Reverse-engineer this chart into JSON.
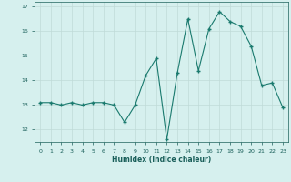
{
  "x": [
    0,
    1,
    2,
    3,
    4,
    5,
    6,
    7,
    8,
    9,
    10,
    11,
    12,
    13,
    14,
    15,
    16,
    17,
    18,
    19,
    20,
    21,
    22,
    23
  ],
  "y": [
    13.1,
    13.1,
    13.0,
    13.1,
    13.0,
    13.1,
    13.1,
    13.0,
    12.3,
    13.0,
    14.2,
    14.9,
    11.6,
    14.3,
    16.5,
    14.4,
    16.1,
    16.8,
    16.4,
    16.2,
    15.4,
    13.8,
    13.9,
    12.9
  ],
  "xlabel": "Humidex (Indice chaleur)",
  "ylabel": "",
  "ylim": [
    11.5,
    17.2
  ],
  "xlim": [
    -0.5,
    23.5
  ],
  "yticks": [
    12,
    13,
    14,
    15,
    16,
    17
  ],
  "xticks": [
    0,
    1,
    2,
    3,
    4,
    5,
    6,
    7,
    8,
    9,
    10,
    11,
    12,
    13,
    14,
    15,
    16,
    17,
    18,
    19,
    20,
    21,
    22,
    23
  ],
  "line_color": "#1a7a6e",
  "marker_color": "#1a7a6e",
  "bg_color": "#d6f0ee",
  "grid_color": "#c0dbd8",
  "tick_color": "#1a5f5a",
  "xlabel_color": "#1a5f5a"
}
